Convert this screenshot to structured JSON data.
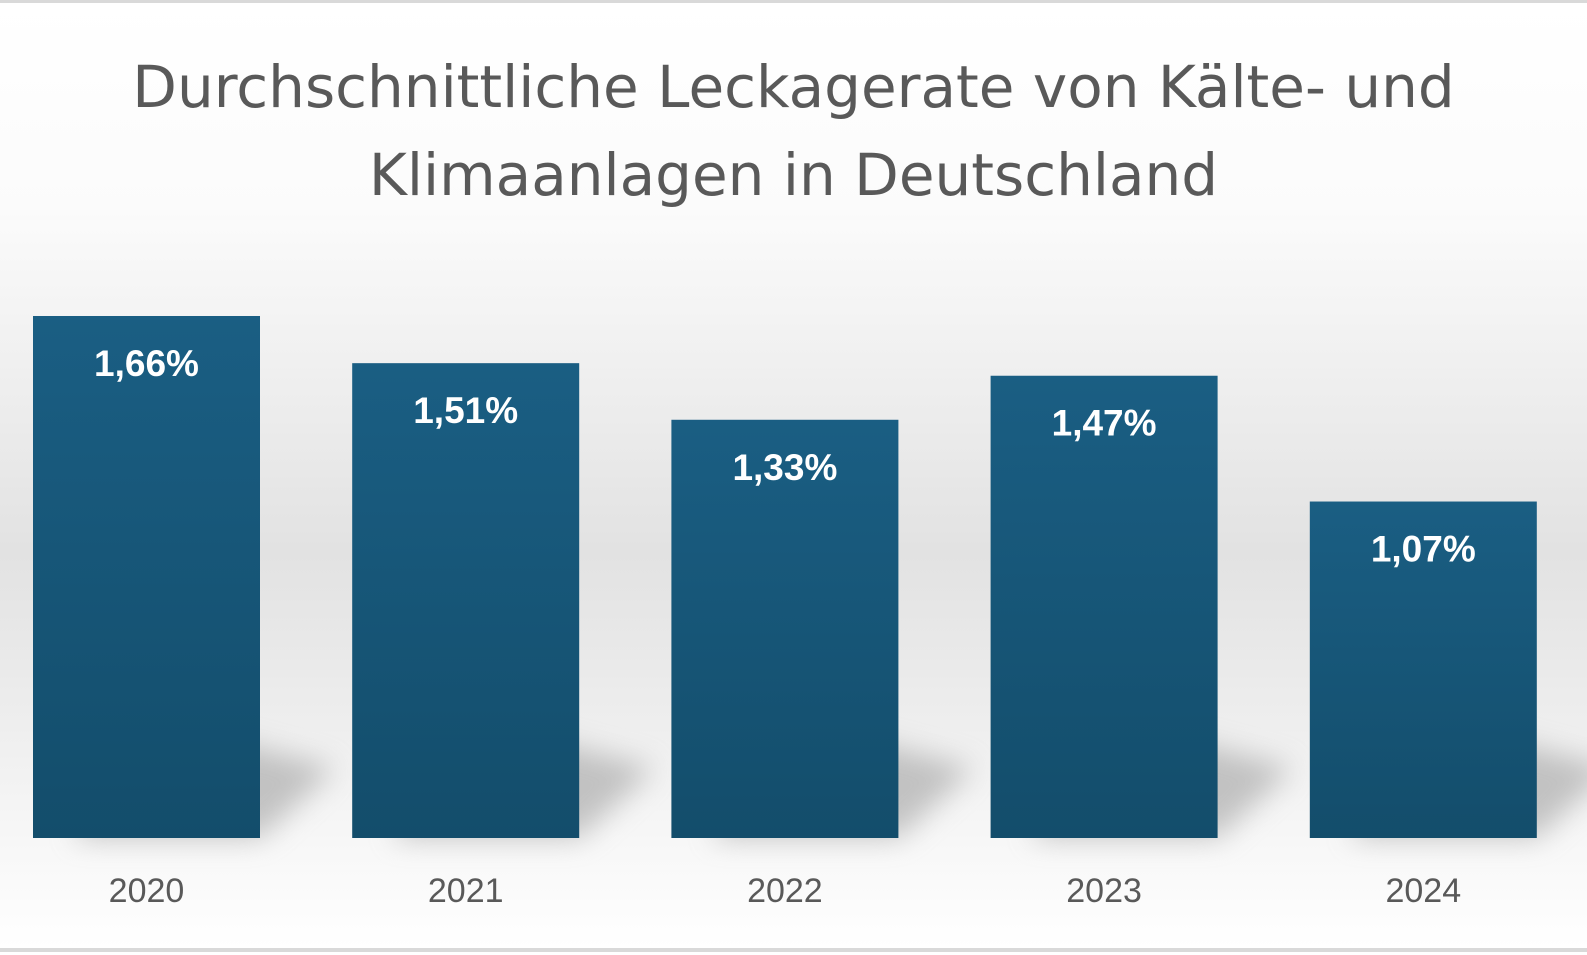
{
  "chart_data": {
    "type": "bar",
    "title": "Durchschnittliche Leckagerate von Kälte- und Klimaanlagen in Deutschland",
    "title_lines": [
      "Durchschnittliche Leckagerate von Kälte- und",
      "Klimaanlagen in Deutschland"
    ],
    "categories": [
      "2020",
      "2021",
      "2022",
      "2023",
      "2024"
    ],
    "values": [
      1.66,
      1.51,
      1.33,
      1.47,
      1.07
    ],
    "data_labels": [
      "1,66%",
      "1,51%",
      "1,33%",
      "1,47%",
      "1,07%"
    ],
    "xlabel": "",
    "ylabel": "",
    "ylim": [
      0,
      1.66
    ],
    "grid": false,
    "legend": "none",
    "colors": {
      "bar_top": "#1a5e83",
      "bar_bottom": "#134d6b",
      "label": "#ffffff",
      "tick": "#595959",
      "title": "#595959"
    }
  }
}
